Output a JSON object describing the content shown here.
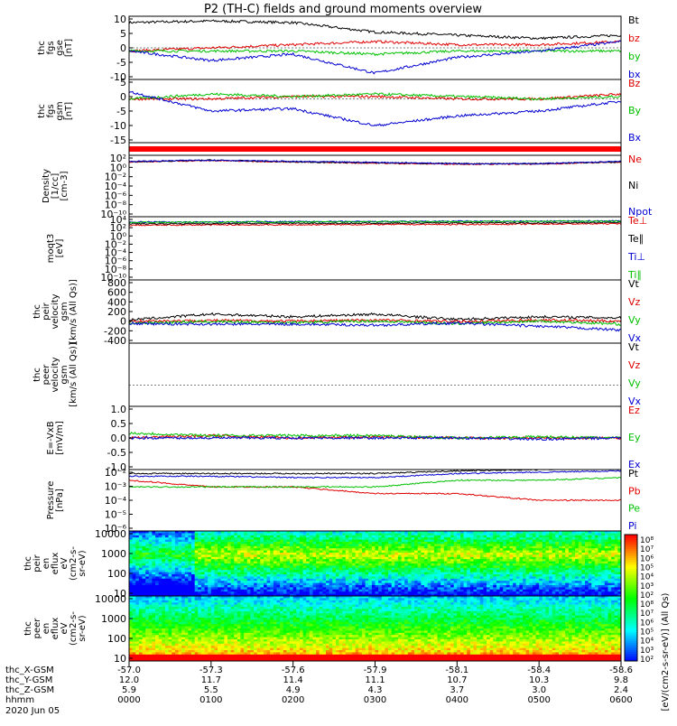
{
  "title": "P2 (TH-C) fields and ground moments overview",
  "panels": [
    {
      "label": [
        "thc",
        "fgs",
        "gse",
        "[nT]"
      ],
      "yticks": [
        "10",
        "5",
        "0",
        "-5",
        "-10"
      ],
      "legend": [
        [
          "Bt",
          "#000"
        ],
        [
          "bz",
          "#e00000"
        ],
        [
          "by",
          "#00c000"
        ],
        [
          "bx",
          "#0000d0"
        ]
      ]
    },
    {
      "label": [
        "thc",
        "fgs",
        "gsm",
        "[nT]"
      ],
      "yticks": [
        "5",
        "0",
        "-5",
        "-10",
        "-15"
      ],
      "legend": [
        [
          "Bz",
          "#e00000"
        ],
        [
          "By",
          "#00c000"
        ],
        [
          "Bx",
          "#0000d0"
        ]
      ]
    },
    {
      "label": [],
      "yticks": [],
      "legend": []
    },
    {
      "label": [
        "Density",
        "[1/cc]",
        "[cm-3]"
      ],
      "yticks": [
        "10²",
        "10⁰",
        "10⁻²",
        "10⁻⁴",
        "10⁻⁶",
        "10⁻⁸",
        "10⁻¹⁰"
      ],
      "legend": [
        [
          "Ne",
          "#e00000"
        ],
        [
          "Ni",
          "#000"
        ],
        [
          "Npot",
          "#0000d0"
        ]
      ]
    },
    {
      "label": [
        "moqt3",
        "[eV]"
      ],
      "yticks": [
        "10⁴",
        "10²",
        "10⁰",
        "10⁻²",
        "10⁻⁴",
        "10⁻⁶",
        "10⁻⁸",
        "10⁻¹⁰"
      ],
      "legend": [
        [
          "Te⊥",
          "#e00000"
        ],
        [
          "Te∥",
          "#000"
        ],
        [
          "Ti⊥",
          "#0000d0"
        ],
        [
          "Ti∥",
          "#00c000"
        ]
      ]
    },
    {
      "label": [
        "thc",
        "peir",
        "velocity",
        "gsm",
        "[km/s (All Qs)]"
      ],
      "yticks": [
        "800",
        "600",
        "400",
        "200",
        "0",
        "-200",
        "-400"
      ],
      "legend": [
        [
          "Vt",
          "#000"
        ],
        [
          "Vz",
          "#e00000"
        ],
        [
          "Vy",
          "#00c000"
        ],
        [
          "Vx",
          "#0000d0"
        ]
      ]
    },
    {
      "label": [
        "thc",
        "peer",
        "velocity",
        "gsm",
        "[km/s (All Qs)]"
      ],
      "yticks": [],
      "legend": [
        [
          "Vt",
          "#000"
        ],
        [
          "Vz",
          "#e00000"
        ],
        [
          "Vy",
          "#00c000"
        ],
        [
          "Vx",
          "#0000d0"
        ]
      ]
    },
    {
      "label": [
        "E=-VxB",
        "[mV/m]"
      ],
      "yticks": [
        "1.0",
        "0.5",
        "0.0",
        "-0.5",
        "-1.0"
      ],
      "legend": [
        [
          "Ez",
          "#e00000"
        ],
        [
          "Ey",
          "#00c000"
        ],
        [
          "Ex",
          "#0000d0"
        ]
      ]
    },
    {
      "label": [
        "Pressure",
        "[nPa]"
      ],
      "yticks": [
        "10⁻²",
        "10⁻³",
        "10⁻⁴",
        "10⁻⁵",
        "10⁻⁶"
      ],
      "legend": [
        [
          "Pt",
          "#000"
        ],
        [
          "Pb",
          "#e00000"
        ],
        [
          "Pe",
          "#00c000"
        ],
        [
          "Pi",
          "#0000d0"
        ]
      ]
    },
    {
      "label": [
        "thc",
        "peir",
        "en",
        "eflux",
        "eV",
        "(cm2-s-",
        "sr-eV)"
      ],
      "yticks": [
        "10000",
        "1000",
        "100",
        "10"
      ],
      "legend": []
    },
    {
      "label": [
        "thc",
        "peer",
        "en",
        "eflux",
        "eV",
        "(cm2-s-",
        "sr-eV)"
      ],
      "yticks": [
        "10000",
        "1000",
        "100",
        "10"
      ],
      "legend": []
    }
  ],
  "colorbar": {
    "ticks": [
      "10⁸",
      "10⁷",
      "10⁶",
      "10⁵",
      "10⁴",
      "10³",
      "10²",
      "10⁸",
      "10⁷",
      "10⁶",
      "10⁵",
      "10⁴",
      "10³",
      "10²"
    ],
    "label": "[eV/(cm2-s-sr-eV)] (All Qs)"
  },
  "xaxis": {
    "rows": [
      {
        "name": "thc_X-GSM",
        "values": [
          "-57.0",
          "-57.3",
          "-57.6",
          "-57.9",
          "-58.1",
          "-58.4",
          "-58.6"
        ]
      },
      {
        "name": "thc_Y-GSM",
        "values": [
          "12.0",
          "11.7",
          "11.4",
          "11.1",
          "10.7",
          "10.3",
          "9.8"
        ]
      },
      {
        "name": "thc_Z-GSM",
        "values": [
          "5.9",
          "5.5",
          "4.9",
          "4.3",
          "3.7",
          "3.0",
          "2.4"
        ]
      },
      {
        "name": "hhmm",
        "values": [
          "0000",
          "0100",
          "0200",
          "0300",
          "0400",
          "0500",
          "0600"
        ]
      }
    ],
    "date": "2020 Jun 05"
  },
  "chart_data": {
    "type": "line",
    "x": [
      "0000",
      "0100",
      "0200",
      "0300",
      "0400",
      "0500",
      "0600"
    ],
    "panels": [
      {
        "series": [
          {
            "name": "Bt",
            "color": "#000",
            "values": [
              8,
              8.5,
              8,
              5,
              4,
              3,
              4
            ]
          },
          {
            "name": "bz",
            "color": "#e00000",
            "values": [
              -1,
              0,
              1,
              2,
              1,
              1,
              2
            ]
          },
          {
            "name": "by",
            "color": "#00c000",
            "values": [
              -1,
              -1,
              -1,
              -2,
              -1,
              -1,
              -1
            ]
          },
          {
            "name": "bx",
            "color": "#0000d0",
            "values": [
              -1,
              -4,
              -2,
              -8,
              -3,
              -1,
              2
            ]
          }
        ],
        "ylim": [
          -10,
          10
        ]
      },
      {
        "series": [
          {
            "name": "Bz",
            "color": "#e00000",
            "values": [
              0,
              0,
              1,
              1,
              0,
              0,
              2
            ]
          },
          {
            "name": "By",
            "color": "#00c000",
            "values": [
              0,
              2,
              1,
              2,
              1,
              0,
              1
            ]
          },
          {
            "name": "Bx",
            "color": "#0000d0",
            "values": [
              3,
              -5,
              -4,
              -11,
              -7,
              -5,
              -1
            ]
          }
        ],
        "ylim": [
          -18,
          8
        ]
      },
      {
        "series": [],
        "ylim": [
          0,
          1
        ]
      },
      {
        "series": [
          {
            "name": "Ne",
            "color": "#e00000",
            "values": [
              1.5,
              1.8,
              1.5,
              1.2,
              1,
              1,
              1.5
            ]
          },
          {
            "name": "Ni",
            "color": "#000",
            "values": [
              1.5,
              1.9,
              1.5,
              1.3,
              1.1,
              1.1,
              1.5
            ]
          },
          {
            "name": "Npot",
            "color": "#0000d0",
            "values": [
              1.6,
              1.9,
              1.6,
              1.4,
              1.1,
              1.1,
              1.6
            ]
          }
        ],
        "ylim": [
          -11,
          3
        ],
        "log": true
      },
      {
        "series": [
          {
            "name": "Te⊥",
            "color": "#e00000",
            "values": [
              2.4,
              2.5,
              2.5,
              2.6,
              2.6,
              2.7,
              2.8
            ]
          },
          {
            "name": "Te∥",
            "color": "#000",
            "values": [
              2.8,
              2.8,
              2.9,
              2.9,
              3,
              3,
              3.1
            ]
          },
          {
            "name": "Ti⊥",
            "color": "#0000d0",
            "values": [
              3.2,
              3.2,
              3.3,
              3.3,
              3.4,
              3.4,
              3.5
            ]
          },
          {
            "name": "Ti∥",
            "color": "#00c000",
            "values": [
              3.1,
              3.2,
              3.2,
              3.3,
              3.3,
              3.4,
              3.4
            ]
          }
        ],
        "ylim": [
          -11,
          4.5
        ],
        "log": true
      },
      {
        "series": [
          {
            "name": "Vt",
            "color": "#000",
            "values": [
              40,
              150,
              100,
              150,
              50,
              100,
              80
            ]
          },
          {
            "name": "Vz",
            "color": "#e00000",
            "values": [
              20,
              30,
              20,
              40,
              10,
              40,
              20
            ]
          },
          {
            "name": "Vy",
            "color": "#00c000",
            "values": [
              -20,
              10,
              -10,
              20,
              -30,
              20,
              -40
            ]
          },
          {
            "name": "Vx",
            "color": "#0000d0",
            "values": [
              -30,
              -40,
              -40,
              -60,
              -20,
              -80,
              -150
            ]
          }
        ],
        "ylim": [
          -400,
          800
        ]
      },
      {
        "series": [],
        "ylim": [
          -400,
          800
        ]
      },
      {
        "series": [
          {
            "name": "Ez",
            "color": "#e00000",
            "values": [
              0,
              0.1,
              0,
              0.05,
              0,
              0,
              0
            ]
          },
          {
            "name": "Ey",
            "color": "#00c000",
            "values": [
              0.2,
              0.1,
              0.1,
              0.1,
              0,
              0.05,
              0
            ]
          },
          {
            "name": "Ex",
            "color": "#0000d0",
            "values": [
              0,
              0,
              0,
              0,
              0,
              -0.05,
              0
            ]
          }
        ],
        "ylim": [
          -1.3,
          1.3
        ]
      },
      {
        "series": [
          {
            "name": "Pt",
            "color": "#000",
            "values": [
              -2,
              -2,
              -2,
              -2,
              -1.8,
              -1.7,
              -1.6
            ]
          },
          {
            "name": "Pb",
            "color": "#e00000",
            "values": [
              -2.5,
              -3,
              -3,
              -3.5,
              -3.5,
              -4,
              -4
            ]
          },
          {
            "name": "Pe",
            "color": "#00c000",
            "values": [
              -3,
              -3,
              -3,
              -3,
              -2.5,
              -2.5,
              -2.3
            ]
          },
          {
            "name": "Pi",
            "color": "#0000d0",
            "values": [
              -2.2,
              -2.2,
              -2.3,
              -2.3,
              -2,
              -1.9,
              -1.8
            ]
          }
        ],
        "ylim": [
          -6.3,
          -1.7
        ],
        "log": true
      }
    ],
    "spectrograms": [
      {
        "name": "peir",
        "ylim": [
          10,
          20000
        ],
        "log": true,
        "zlim": [
          2,
          8
        ]
      },
      {
        "name": "peer",
        "ylim": [
          10,
          20000
        ],
        "log": true,
        "zlim": [
          2,
          8
        ]
      }
    ]
  }
}
